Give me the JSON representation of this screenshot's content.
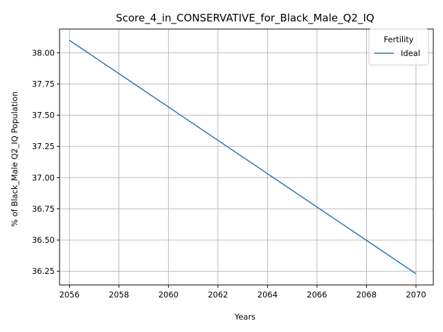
{
  "chart_data": {
    "type": "line",
    "title": "Score_4_in_CONSERVATIVE_for_Black_Male_Q2_IQ",
    "xlabel": "Years",
    "ylabel": "% of Black_Male Q2_IQ Population",
    "xlim": [
      2055.6,
      2070.7
    ],
    "ylim": [
      36.14,
      38.19
    ],
    "xticks": [
      2056,
      2058,
      2060,
      2062,
      2064,
      2066,
      2068,
      2070
    ],
    "yticks": [
      36.25,
      36.5,
      36.75,
      37.0,
      37.25,
      37.5,
      37.75,
      38.0
    ],
    "xtick_labels": [
      "2056",
      "2058",
      "2060",
      "2062",
      "2064",
      "2066",
      "2068",
      "2070"
    ],
    "ytick_labels": [
      "36.25",
      "36.50",
      "36.75",
      "37.00",
      "37.25",
      "37.50",
      "37.75",
      "38.00"
    ],
    "grid": true,
    "legend": {
      "title": "Fertility",
      "position": "top-right"
    },
    "series": [
      {
        "name": "Ideal",
        "color": "#1f77b4",
        "x": [
          2056,
          2070
        ],
        "y": [
          38.1,
          36.23
        ]
      }
    ]
  }
}
